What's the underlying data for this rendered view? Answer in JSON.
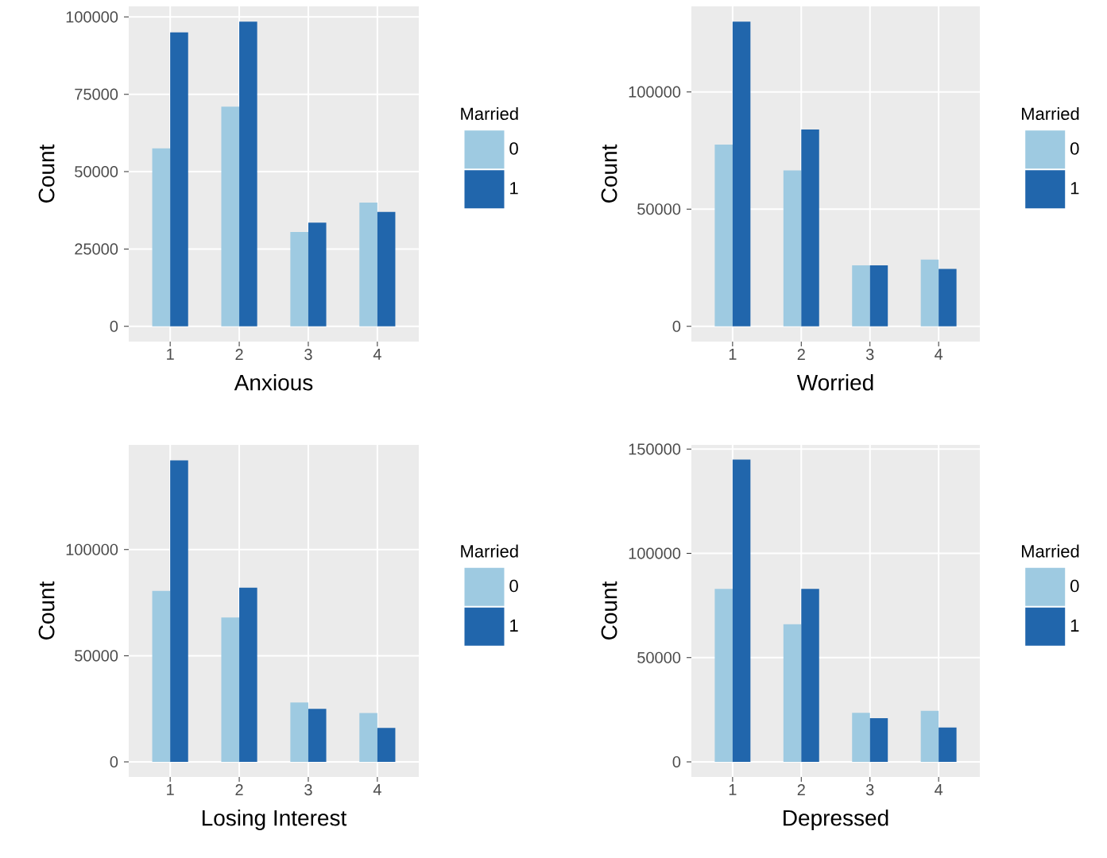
{
  "chart_data": [
    {
      "type": "bar",
      "xlabel": "Anxious",
      "ylabel": "Count",
      "categories": [
        "1",
        "2",
        "3",
        "4"
      ],
      "ylim": [
        -4925,
        103425
      ],
      "yticks": [
        0,
        25000,
        50000,
        75000,
        100000
      ],
      "grid": true,
      "legend": "right",
      "legend_title": "Married",
      "series": [
        {
          "name": "0",
          "color": "#9ecae1",
          "values": [
            57500,
            71000,
            30500,
            40000
          ]
        },
        {
          "name": "1",
          "color": "#2166ac",
          "values": [
            95000,
            98500,
            33500,
            37000
          ]
        }
      ]
    },
    {
      "type": "bar",
      "xlabel": "Worried",
      "ylabel": "Count",
      "categories": [
        "1",
        "2",
        "3",
        "4"
      ],
      "ylim": [
        -6500,
        136500
      ],
      "yticks": [
        0,
        50000,
        100000
      ],
      "grid": true,
      "legend": "right",
      "legend_title": "Married",
      "series": [
        {
          "name": "0",
          "color": "#9ecae1",
          "values": [
            77500,
            66500,
            26000,
            28500
          ]
        },
        {
          "name": "1",
          "color": "#2166ac",
          "values": [
            130000,
            84000,
            26000,
            24500
          ]
        }
      ]
    },
    {
      "type": "bar",
      "xlabel": "Losing Interest",
      "ylabel": "Count",
      "categories": [
        "1",
        "2",
        "3",
        "4"
      ],
      "ylim": [
        -7100,
        149300
      ],
      "yticks": [
        0,
        50000,
        100000
      ],
      "grid": true,
      "legend": "right",
      "legend_title": "Married",
      "series": [
        {
          "name": "0",
          "color": "#9ecae1",
          "values": [
            80500,
            68000,
            28000,
            23000
          ]
        },
        {
          "name": "1",
          "color": "#2166ac",
          "values": [
            142000,
            82000,
            25000,
            16000
          ]
        }
      ]
    },
    {
      "type": "bar",
      "xlabel": "Depressed",
      "ylabel": "Count",
      "categories": [
        "1",
        "2",
        "3",
        "4"
      ],
      "ylim": [
        -7240,
        152040
      ],
      "yticks": [
        0,
        50000,
        100000,
        150000
      ],
      "grid": true,
      "legend": "right",
      "legend_title": "Married",
      "series": [
        {
          "name": "0",
          "color": "#9ecae1",
          "values": [
            83000,
            66000,
            23500,
            24500
          ]
        },
        {
          "name": "1",
          "color": "#2166ac",
          "values": [
            145000,
            83000,
            21000,
            16500
          ]
        }
      ]
    }
  ]
}
